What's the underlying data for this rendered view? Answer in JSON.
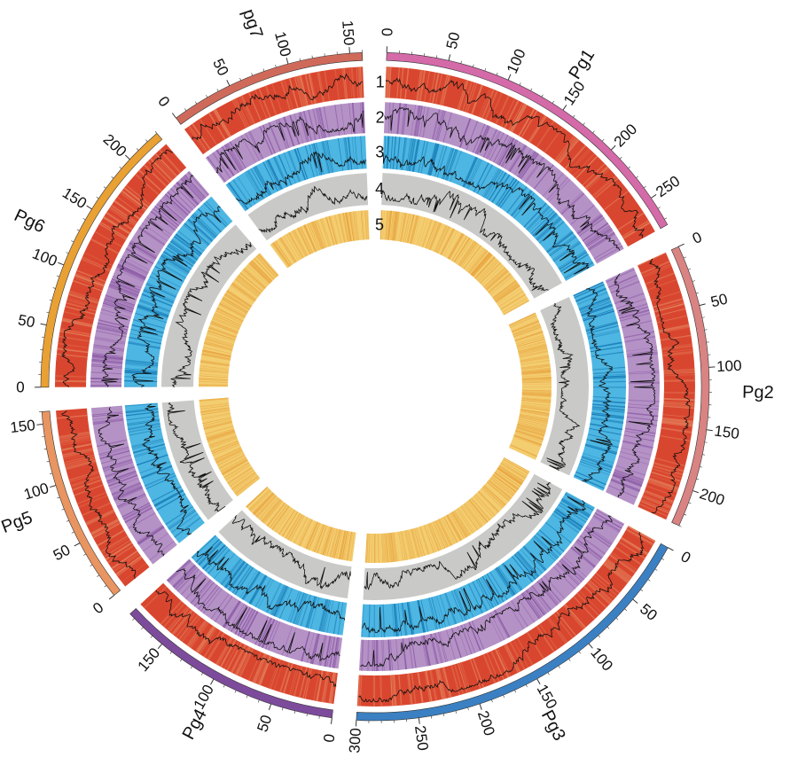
{
  "chart_data": {
    "type": "circos",
    "tick_step": 50,
    "chromosomes": [
      {
        "name": "Pg1",
        "length": 275,
        "color": "#d56aa9"
      },
      {
        "name": "Pg2",
        "length": 230,
        "color": "#d98383"
      },
      {
        "name": "Pg3",
        "length": 300,
        "color": "#3b80c2"
      },
      {
        "name": "Pg4",
        "length": 185,
        "color": "#7d4b9b"
      },
      {
        "name": "Pg5",
        "length": 160,
        "color": "#e99561"
      },
      {
        "name": "Pg6",
        "length": 230,
        "color": "#e9a133"
      },
      {
        "name": "pg7",
        "length": 160,
        "color": "#cf6a5b"
      }
    ],
    "tracks": [
      {
        "label": "1",
        "type": "heatmap+line",
        "color": "#d9462f",
        "stripe_color": "#e27a57"
      },
      {
        "label": "2",
        "type": "heatmap+line",
        "color": "#b592c6",
        "stripe_color": "#8e5fa8"
      },
      {
        "label": "3",
        "type": "heatmap+line",
        "color": "#4db6e2",
        "stripe_color": "#1a7db8"
      },
      {
        "label": "4",
        "type": "line",
        "color": "#c9c9c7",
        "stripe_color": "#c9c9c7"
      },
      {
        "label": "5",
        "type": "heatmap",
        "color": "#f3cd70",
        "stripe_color": "#e8a440"
      }
    ]
  }
}
